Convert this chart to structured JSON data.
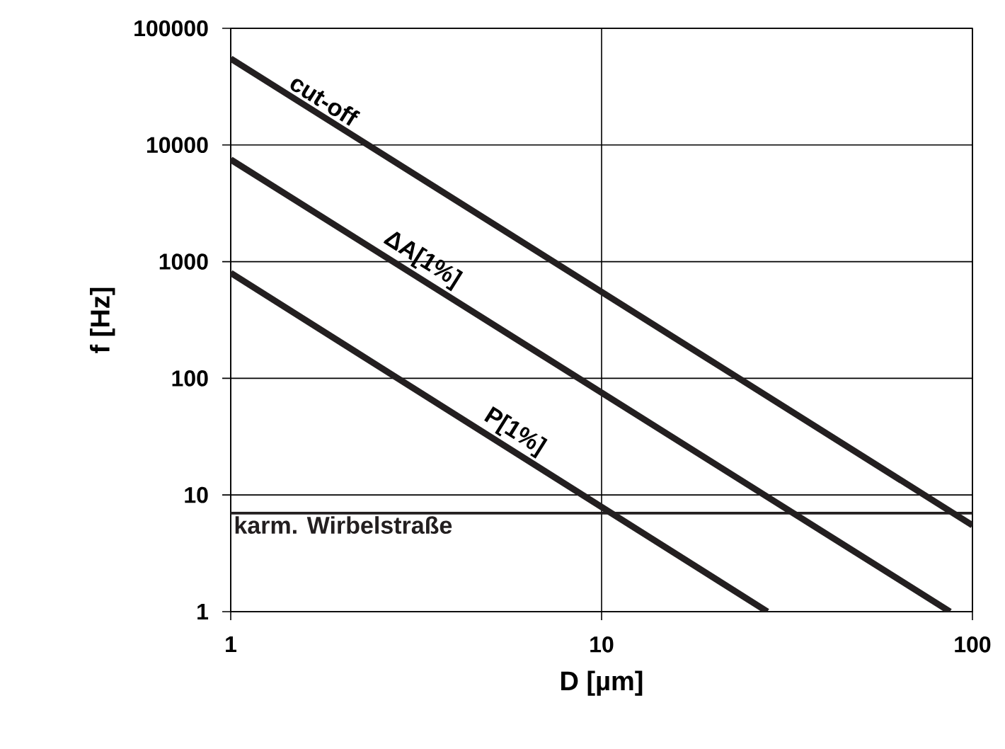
{
  "chart_data": {
    "type": "line",
    "xlabel": "D [µm]",
    "ylabel": "f [Hz]",
    "log": "xy",
    "grid": true,
    "marker": "none",
    "line_style": "solid",
    "xlim": [
      1,
      100
    ],
    "ylim": [
      1,
      100000
    ],
    "xticks": [
      1,
      10,
      100
    ],
    "yticks": [
      1,
      10,
      100,
      1000,
      10000,
      100000
    ],
    "series": [
      {
        "color": "#231f20",
        "x": [
          1,
          100
        ],
        "values": [
          55000,
          5.5
        ]
      },
      {
        "color": "#231f20",
        "x": [
          1,
          87
        ],
        "values": [
          7500,
          1
        ]
      },
      {
        "color": "#231f20",
        "x": [
          1,
          28
        ],
        "values": [
          800,
          1
        ]
      }
    ],
    "ref_lines": [
      {
        "axis": "y",
        "value": 7,
        "label": "karm. Wirbelstraße",
        "color": "#231f20",
        "line_style": "solid"
      }
    ],
    "annotations": [
      {
        "text": "cut-off",
        "x": 1.7,
        "y": 19000
      },
      {
        "text": "ΔA[1%]",
        "x": 3.1,
        "y": 780
      },
      {
        "text": "P[1%]",
        "x": 5.5,
        "y": 26
      }
    ]
  }
}
